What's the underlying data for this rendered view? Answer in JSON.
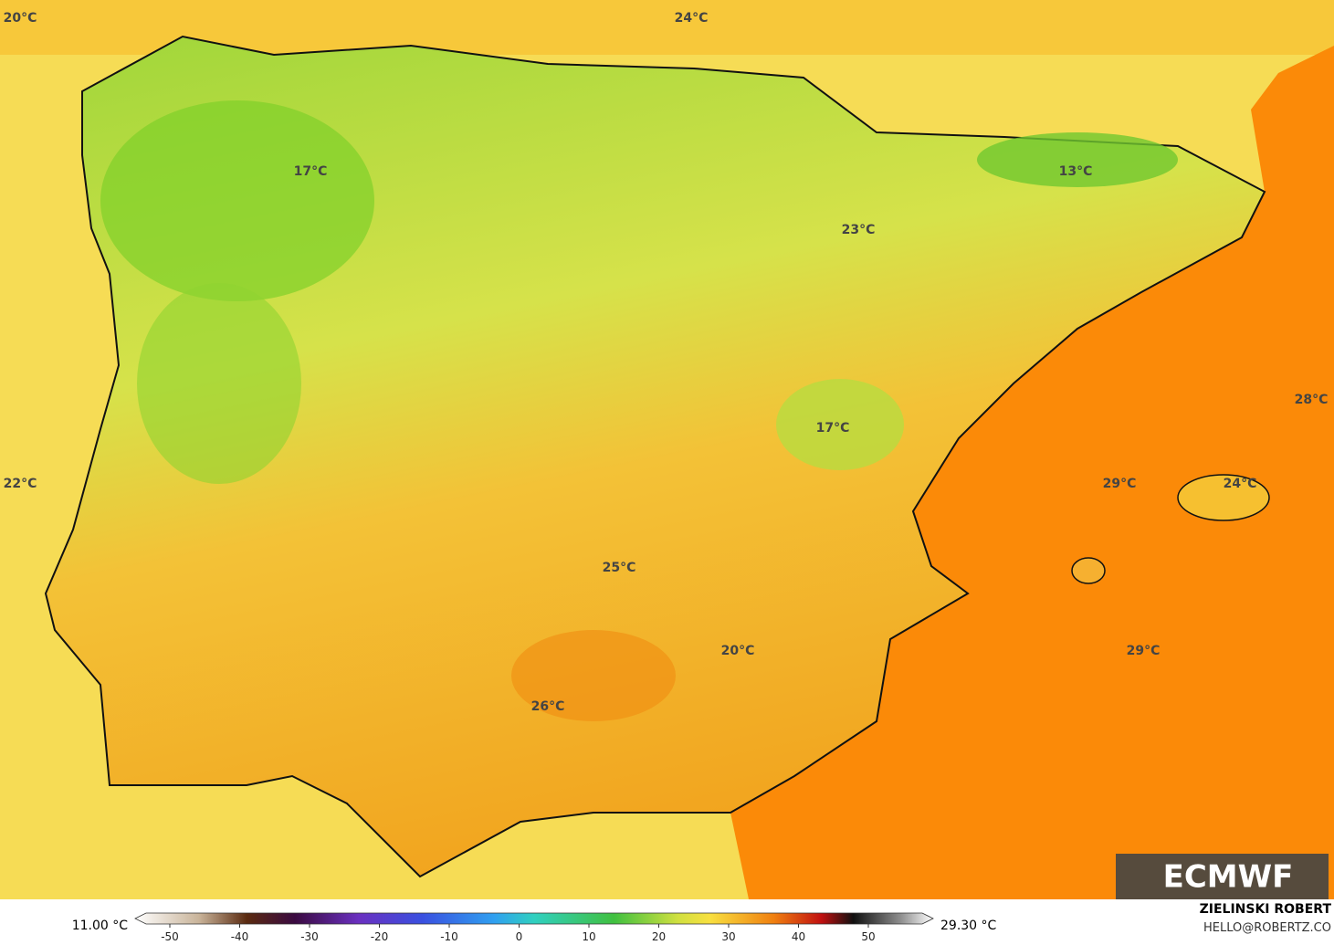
{
  "map_labels": [
    "20°C",
    "24°C",
    "17°C",
    "13°C",
    "23°C",
    "28°C",
    "22°C",
    "29°C",
    "24°C",
    "17°C",
    "25°C",
    "29°C",
    "20°C",
    "26°C"
  ],
  "logo": "ECMWF",
  "colorbar": {
    "min_label": "11.00 °C",
    "max_label": "29.30 °C",
    "ticks": [
      -50,
      -40,
      -30,
      -20,
      -10,
      0,
      10,
      20,
      30,
      40,
      50
    ]
  },
  "credit": {
    "name": "ZIELINSKI ROBERT",
    "contact": "HELLO@ROBERTZ.CO"
  }
}
